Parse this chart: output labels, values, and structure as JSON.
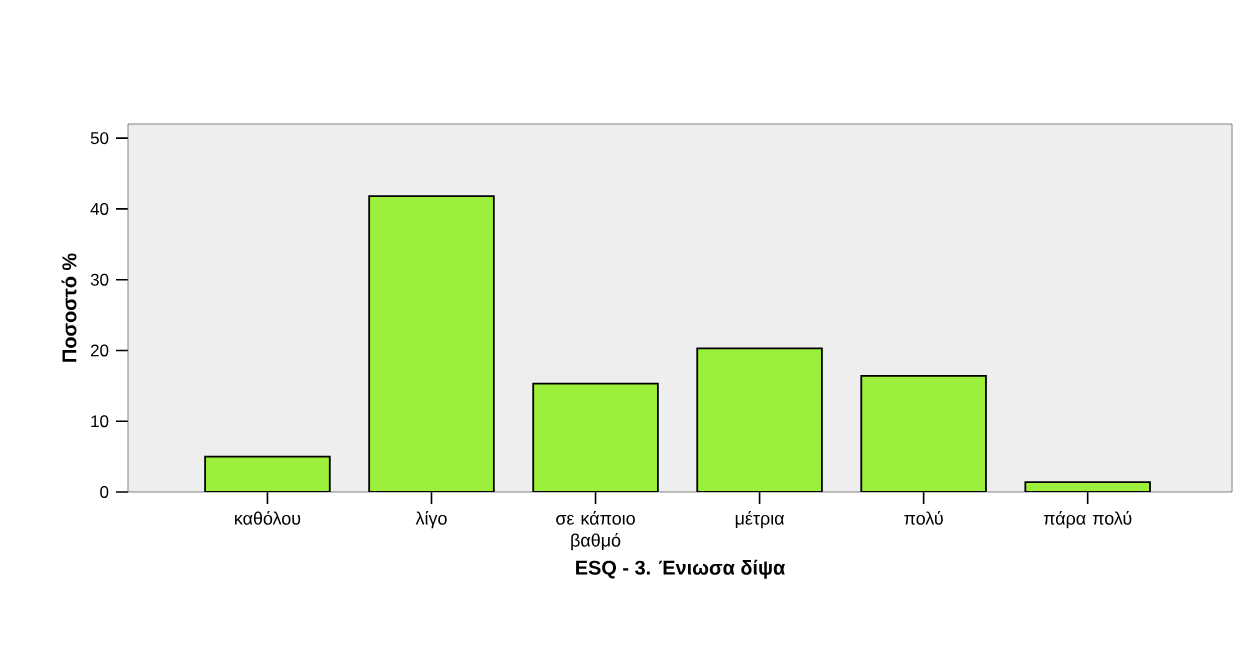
{
  "chart_data": {
    "type": "bar",
    "xlabel": "ESQ - 3. Ένιωσα δίψα",
    "ylabel": "Ποσοστό %",
    "categories": [
      "καθόλου",
      "λίγο",
      "σε κάποιο βαθμό",
      "μέτρια",
      "πολύ",
      "πάρα πολύ"
    ],
    "values": [
      5.0,
      41.8,
      15.3,
      20.3,
      16.4,
      1.4
    ],
    "color": "#9cef3a",
    "ylim": [
      0,
      52
    ],
    "yticks": [
      0,
      10,
      20,
      30,
      40,
      50
    ],
    "grid": false
  }
}
